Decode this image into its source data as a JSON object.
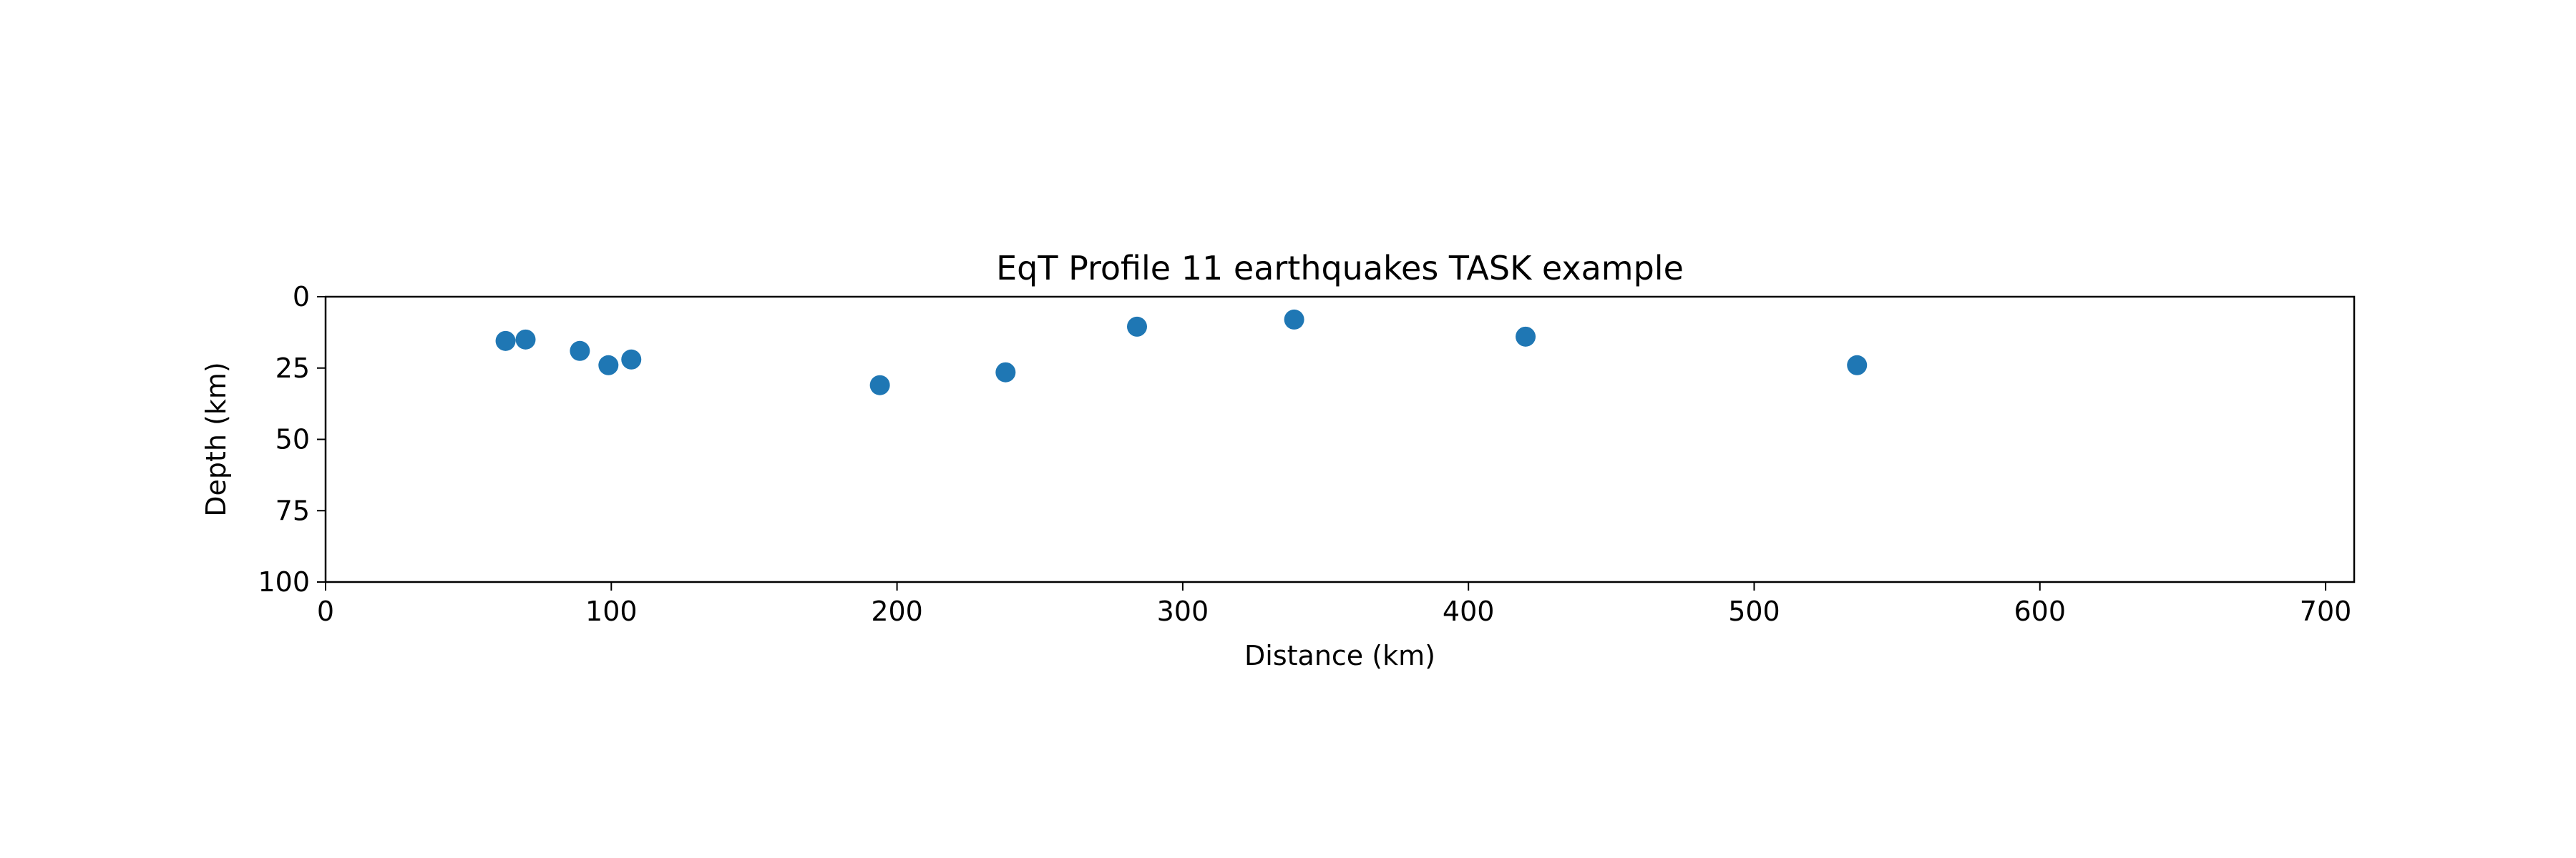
{
  "chart_data": {
    "type": "scatter",
    "title": "EqT Profile 11 earthquakes TASK example",
    "xlabel": "Distance (km)",
    "ylabel": "Depth (km)",
    "xlim": [
      0,
      710
    ],
    "ylim": [
      100,
      0
    ],
    "y_inverted": true,
    "x_ticks": [
      0,
      100,
      200,
      300,
      400,
      500,
      600,
      700
    ],
    "y_ticks": [
      0,
      25,
      50,
      75,
      100
    ],
    "grid": false,
    "legend": "none",
    "marker_color": "#1f77b4",
    "points": [
      {
        "x": 63,
        "y": 15.5
      },
      {
        "x": 70,
        "y": 15
      },
      {
        "x": 89,
        "y": 19
      },
      {
        "x": 99,
        "y": 24
      },
      {
        "x": 107,
        "y": 22
      },
      {
        "x": 194,
        "y": 31
      },
      {
        "x": 238,
        "y": 26.5
      },
      {
        "x": 284,
        "y": 10.5
      },
      {
        "x": 339,
        "y": 8
      },
      {
        "x": 420,
        "y": 14
      },
      {
        "x": 536,
        "y": 24
      }
    ]
  }
}
